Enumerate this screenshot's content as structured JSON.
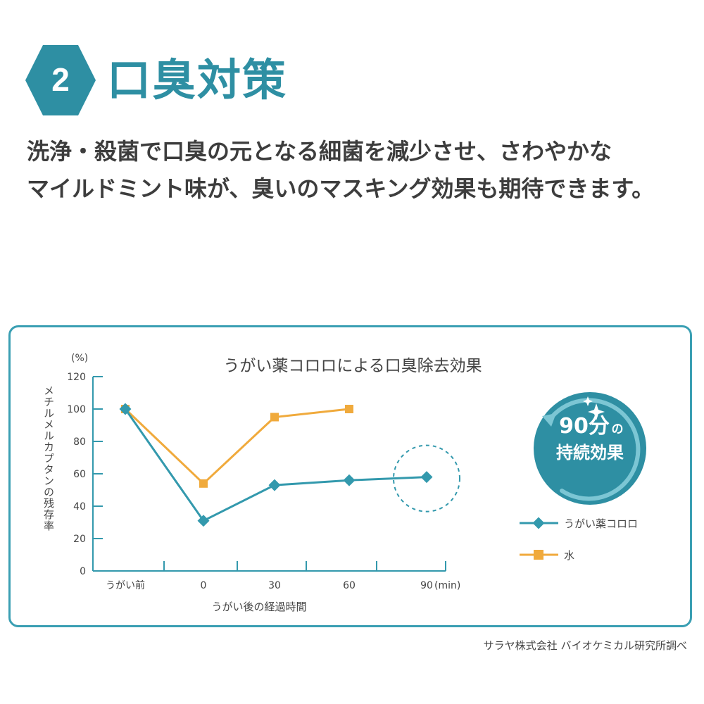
{
  "header": {
    "badge_number": "2",
    "title": "口臭対策"
  },
  "description": {
    "line1": "洗浄・殺菌で口臭の元となる細菌を減少させ、さわやかな",
    "line2": "マイルドミント味が、臭いのマスキング効果も期待できます。"
  },
  "colors": {
    "accent": "#2e8fa3",
    "korolo_series": "#3399ad",
    "water_series": "#f0aa3c",
    "badge_circle": "#2e8fa3"
  },
  "chart_data": {
    "type": "line",
    "title": "うがい薬コロロによる口臭除去効果",
    "y_unit": "(%)",
    "ylabel": "メチルメルカプタンの残存率",
    "xlabel": "うがい後の経過時間",
    "x_unit": "(min)",
    "categories": [
      "うがい前",
      "0",
      "30",
      "60",
      "90"
    ],
    "ylim": [
      0,
      120
    ],
    "yticks": [
      0,
      20,
      40,
      60,
      80,
      100,
      120
    ],
    "grid": false,
    "legend_position": "right",
    "series": [
      {
        "name": "うがい薬コロロ",
        "marker": "diamond",
        "values": [
          100,
          31,
          53,
          56,
          58
        ]
      },
      {
        "name": "水",
        "marker": "square",
        "values": [
          100,
          54,
          95,
          100,
          null
        ]
      }
    ],
    "annotations": {
      "highlight_category": "90",
      "badge_main": "90分",
      "badge_particle": "の",
      "badge_sub": "持続効果"
    }
  },
  "footer": {
    "credit": "サラヤ株式会社 バイオケミカル研究所調べ"
  }
}
